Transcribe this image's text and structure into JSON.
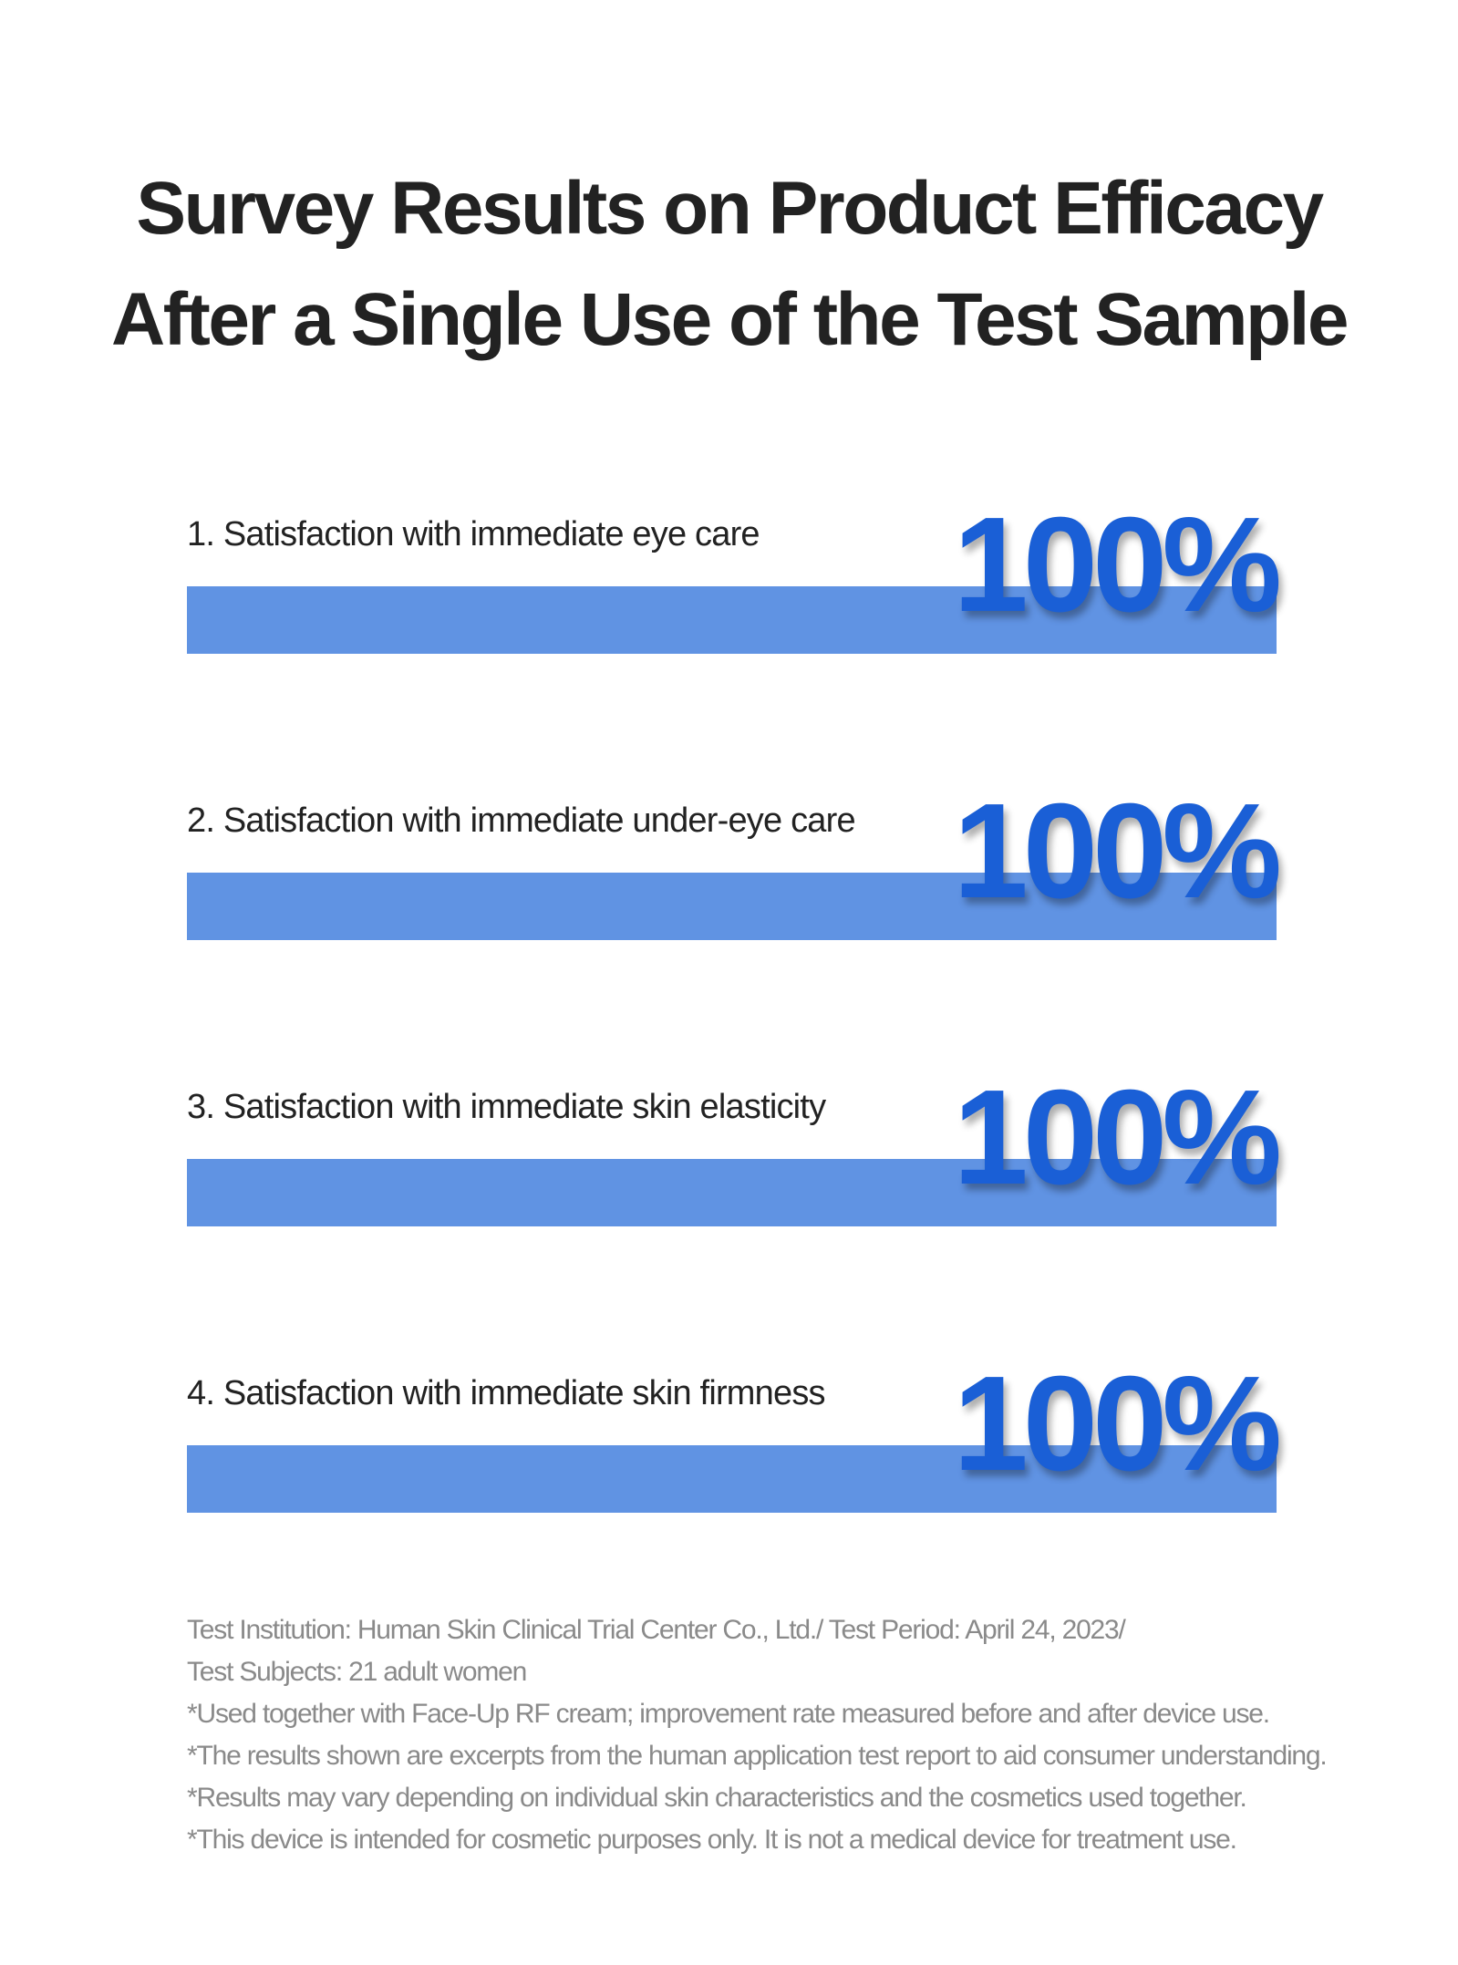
{
  "title_lines": [
    "Survey Results on Product Efficacy",
    "After a Single Use of the Test Sample"
  ],
  "chart_data": {
    "type": "bar",
    "orientation": "horizontal",
    "categories": [
      "1. Satisfaction with immediate eye care",
      "2. Satisfaction with immediate under-eye care",
      "3. Satisfaction with immediate skin elasticity",
      "4. Satisfaction with immediate skin firmness"
    ],
    "values": [
      100,
      100,
      100,
      100
    ],
    "value_labels": [
      "100%",
      "100%",
      "100%",
      "100%"
    ],
    "unit": "%",
    "xlim": [
      0,
      100
    ],
    "title": "Survey Results on Product Efficacy After a Single Use of the Test Sample",
    "xlabel": "",
    "ylabel": "",
    "grid": false,
    "bar_color": "#6093e3",
    "value_color": "#1a5fd6"
  },
  "footnotes": [
    "Test Institution: Human Skin Clinical Trial Center Co., Ltd./ Test Period: April 24, 2023/",
    "Test Subjects: 21 adult women",
    "*Used together with Face-Up RF cream; improvement rate measured before and after device use.",
    "*The results shown are excerpts from the human application test report to aid consumer understanding.",
    "*Results may vary depending on individual skin characteristics and the cosmetics used together.",
    "*This device is intended for cosmetic purposes only. It is not a medical device for treatment use."
  ]
}
